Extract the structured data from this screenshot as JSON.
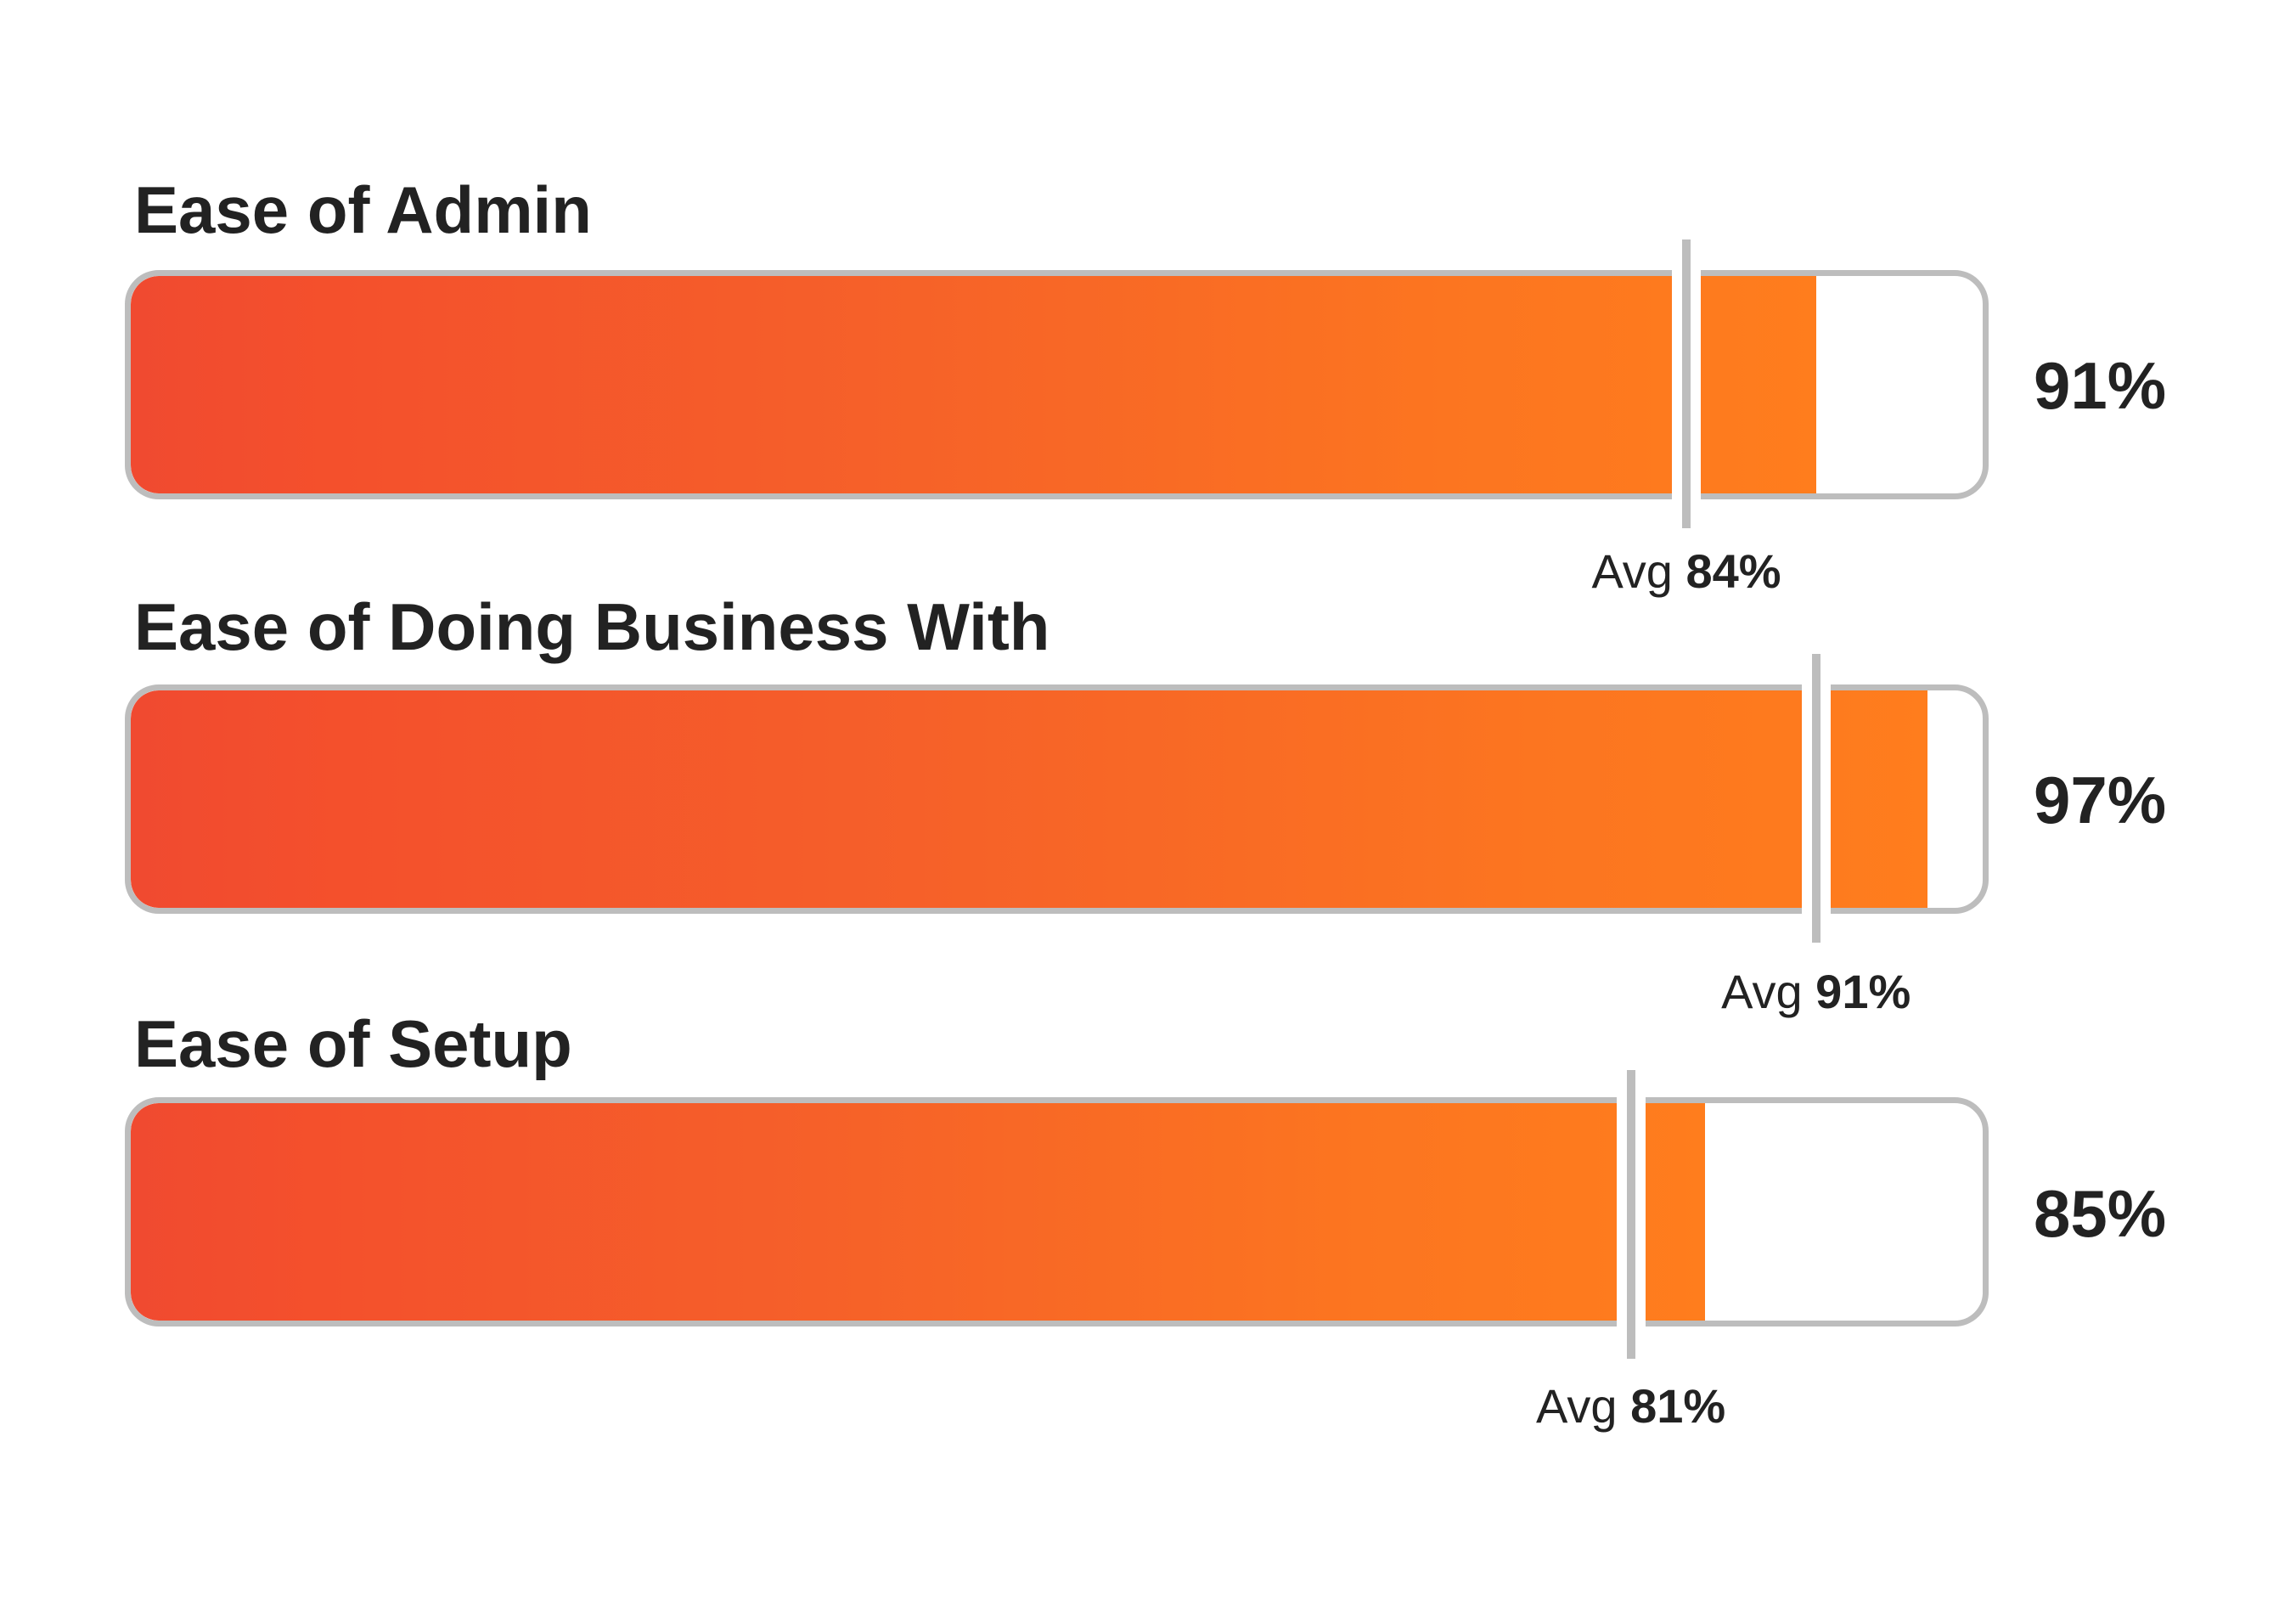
{
  "chart_data": {
    "type": "bar",
    "orientation": "horizontal",
    "categories": [
      "Ease of Admin",
      "Ease of Doing Business With",
      "Ease of Setup"
    ],
    "xlim": [
      0,
      100
    ],
    "series": [
      {
        "values": [
          91,
          97,
          85
        ]
      },
      {
        "values": [
          84,
          91,
          81
        ]
      }
    ],
    "value_labels": [
      "91%",
      "97%",
      "85%"
    ],
    "avg_prefix": "Avg",
    "avg_labels": [
      "84%",
      "91%",
      "81%"
    ],
    "colors": {
      "fill_start": "#f04a30",
      "fill_end": "#ff7d1d",
      "track_border": "#bdbdbd",
      "marker": "#bdbdbd",
      "text": "#222222"
    }
  }
}
